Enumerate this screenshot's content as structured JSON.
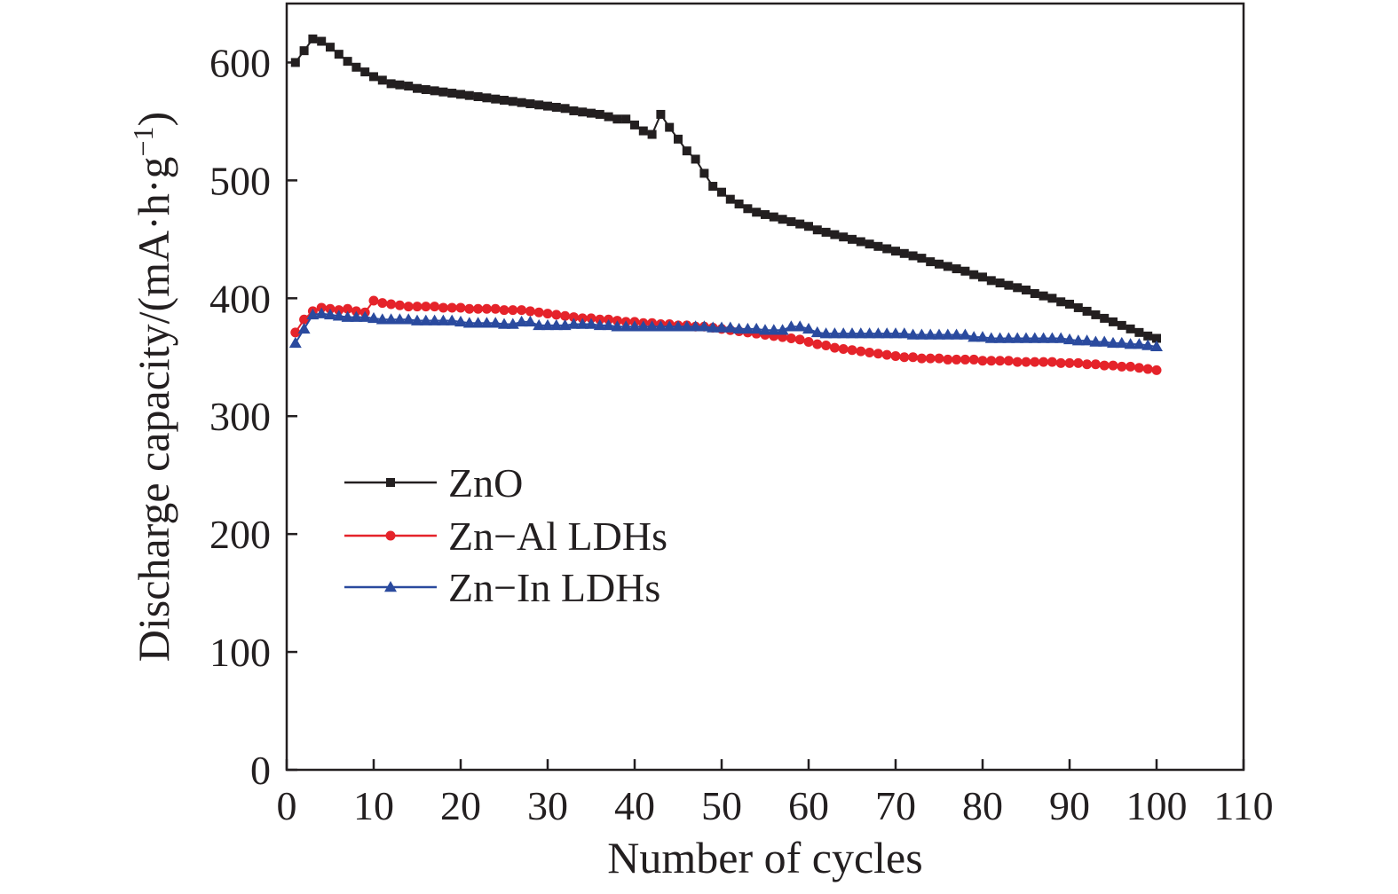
{
  "chart_data": {
    "type": "line",
    "title": "",
    "xlabel": "Number of cycles",
    "ylabel_main": "Discharge capacity/(mA·h·g",
    "ylabel_sup": "−1",
    "ylabel_close": ")",
    "xlim": [
      0,
      110
    ],
    "ylim": [
      0,
      650
    ],
    "xticks": [
      0,
      10,
      20,
      30,
      40,
      50,
      60,
      70,
      80,
      90,
      100,
      110
    ],
    "yticks": [
      0,
      100,
      200,
      300,
      400,
      500,
      600
    ],
    "grid": false,
    "legend_position": "center-left",
    "series": [
      {
        "name": "ZnO",
        "color": "#231f20",
        "marker": "square",
        "x": [
          1,
          2,
          3,
          4,
          5,
          6,
          7,
          8,
          9,
          10,
          11,
          12,
          13,
          14,
          15,
          16,
          17,
          18,
          19,
          20,
          21,
          22,
          23,
          24,
          25,
          26,
          27,
          28,
          29,
          30,
          31,
          32,
          33,
          34,
          35,
          36,
          37,
          38,
          39,
          40,
          41,
          42,
          43,
          44,
          45,
          46,
          47,
          48,
          49,
          50,
          51,
          52,
          53,
          54,
          55,
          56,
          57,
          58,
          59,
          60,
          61,
          62,
          63,
          64,
          65,
          66,
          67,
          68,
          69,
          70,
          71,
          72,
          73,
          74,
          75,
          76,
          77,
          78,
          79,
          80,
          81,
          82,
          83,
          84,
          85,
          86,
          87,
          88,
          89,
          90,
          91,
          92,
          93,
          94,
          95,
          96,
          97,
          98,
          99,
          100
        ],
        "y": [
          600,
          610,
          620,
          618,
          613,
          607,
          601,
          596,
          592,
          588,
          585,
          582,
          581,
          580,
          578,
          577,
          576,
          575,
          574,
          573,
          572,
          571,
          570,
          569,
          568,
          567,
          566,
          565,
          564,
          563,
          562,
          561,
          559,
          558,
          557,
          556,
          554,
          552,
          552,
          547,
          542,
          539,
          556,
          545,
          535,
          525,
          518,
          506,
          495,
          490,
          484,
          480,
          476,
          473,
          471,
          469,
          467,
          465,
          463,
          461,
          458,
          456,
          454,
          452,
          450,
          448,
          446,
          444,
          442,
          440,
          438,
          436,
          434,
          431,
          429,
          427,
          425,
          423,
          420,
          418,
          415,
          413,
          411,
          409,
          407,
          404,
          402,
          400,
          397,
          395,
          392,
          389,
          386,
          383,
          380,
          377,
          374,
          371,
          368,
          366
        ]
      },
      {
        "name": "Zn−Al LDHs",
        "color": "#e5232a",
        "marker": "circle",
        "x": [
          1,
          2,
          3,
          4,
          5,
          6,
          7,
          8,
          9,
          10,
          11,
          12,
          13,
          14,
          15,
          16,
          17,
          18,
          19,
          20,
          21,
          22,
          23,
          24,
          25,
          26,
          27,
          28,
          29,
          30,
          31,
          32,
          33,
          34,
          35,
          36,
          37,
          38,
          39,
          40,
          41,
          42,
          43,
          44,
          45,
          46,
          47,
          48,
          49,
          50,
          51,
          52,
          53,
          54,
          55,
          56,
          57,
          58,
          59,
          60,
          61,
          62,
          63,
          64,
          65,
          66,
          67,
          68,
          69,
          70,
          71,
          72,
          73,
          74,
          75,
          76,
          77,
          78,
          79,
          80,
          81,
          82,
          83,
          84,
          85,
          86,
          87,
          88,
          89,
          90,
          91,
          92,
          93,
          94,
          95,
          96,
          97,
          98,
          99,
          100
        ],
        "y": [
          371,
          382,
          389,
          392,
          391,
          390,
          391,
          389,
          388,
          398,
          396,
          395,
          394,
          393,
          393,
          393,
          393,
          392,
          392,
          392,
          391,
          391,
          391,
          391,
          390,
          390,
          390,
          389,
          388,
          387,
          386,
          385,
          384,
          383,
          383,
          382,
          382,
          381,
          380,
          380,
          379,
          379,
          378,
          378,
          377,
          377,
          376,
          376,
          375,
          374,
          373,
          372,
          371,
          370,
          369,
          368,
          367,
          366,
          365,
          363,
          361,
          360,
          358,
          357,
          356,
          355,
          354,
          353,
          352,
          351,
          350,
          350,
          349,
          349,
          349,
          348,
          348,
          348,
          348,
          347,
          347,
          347,
          347,
          346,
          346,
          346,
          346,
          346,
          345,
          345,
          345,
          344,
          344,
          343,
          343,
          342,
          342,
          341,
          340,
          339
        ]
      },
      {
        "name": "Zn−In LDHs",
        "color": "#2a4a9e",
        "marker": "triangle",
        "x": [
          1,
          2,
          3,
          4,
          5,
          6,
          7,
          8,
          9,
          10,
          11,
          12,
          13,
          14,
          15,
          16,
          17,
          18,
          19,
          20,
          21,
          22,
          23,
          24,
          25,
          26,
          27,
          28,
          29,
          30,
          31,
          32,
          33,
          34,
          35,
          36,
          37,
          38,
          39,
          40,
          41,
          42,
          43,
          44,
          45,
          46,
          47,
          48,
          49,
          50,
          51,
          52,
          53,
          54,
          55,
          56,
          57,
          58,
          59,
          60,
          61,
          62,
          63,
          64,
          65,
          66,
          67,
          68,
          69,
          70,
          71,
          72,
          73,
          74,
          75,
          76,
          77,
          78,
          79,
          80,
          81,
          82,
          83,
          84,
          85,
          86,
          87,
          88,
          89,
          90,
          91,
          92,
          93,
          94,
          95,
          96,
          97,
          98,
          99,
          100
        ],
        "y": [
          362,
          374,
          386,
          387,
          386,
          385,
          384,
          384,
          384,
          383,
          382,
          382,
          382,
          382,
          381,
          381,
          381,
          381,
          381,
          380,
          379,
          379,
          379,
          379,
          378,
          378,
          380,
          380,
          377,
          377,
          377,
          377,
          378,
          378,
          378,
          377,
          377,
          376,
          376,
          376,
          376,
          376,
          376,
          376,
          376,
          376,
          376,
          376,
          375,
          375,
          375,
          374,
          374,
          374,
          373,
          373,
          373,
          376,
          376,
          374,
          371,
          370,
          370,
          370,
          370,
          370,
          370,
          370,
          370,
          370,
          370,
          369,
          369,
          369,
          369,
          369,
          369,
          369,
          367,
          367,
          366,
          366,
          366,
          366,
          366,
          366,
          366,
          366,
          366,
          365,
          364,
          364,
          363,
          363,
          362,
          362,
          361,
          361,
          360,
          359
        ]
      }
    ]
  }
}
